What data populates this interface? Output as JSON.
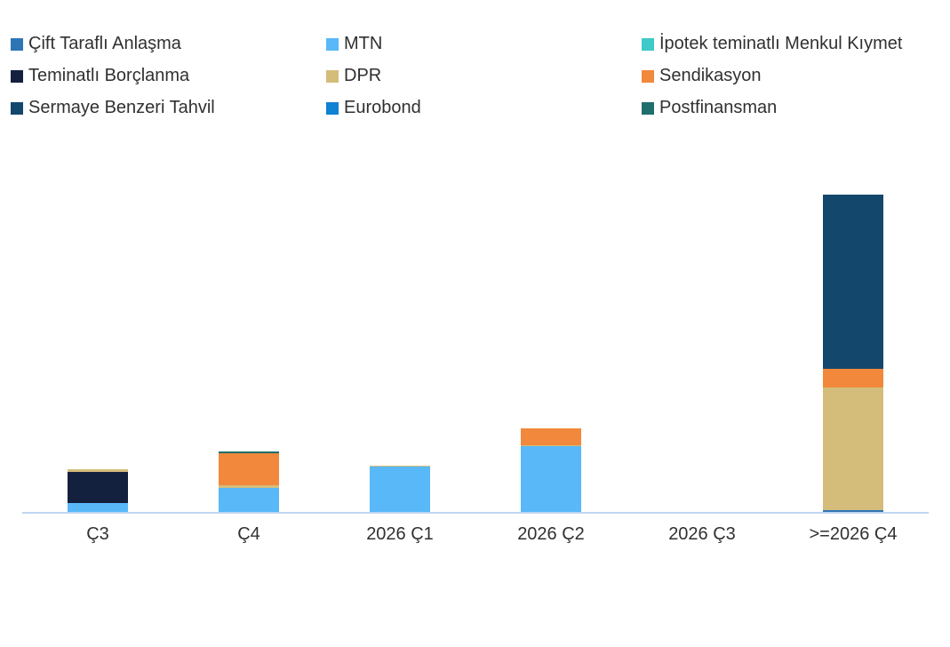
{
  "colors": {
    "axis_line": "#BDD7EE",
    "text": "#303030",
    "background": "#FFFFFF"
  },
  "legend": {
    "position": "top",
    "columns": 3,
    "items": [
      {
        "label": "Çift Taraflı Anlaşma",
        "color": "#2E75B6"
      },
      {
        "label": "MTN",
        "color": "#58B8F8"
      },
      {
        "label": "İpotek teminatlı Menkul Kıymet",
        "color": "#3FC9C9"
      },
      {
        "label": "Teminatlı Borçlanma",
        "color": "#13213F"
      },
      {
        "label": "DPR",
        "color": "#D4BD7B"
      },
      {
        "label": "Sendikasyon",
        "color": "#F1883B"
      },
      {
        "label": "Sermaye Benzeri Tahvil",
        "color": "#14476C"
      },
      {
        "label": "Eurobond",
        "color": "#0E82D3"
      },
      {
        "label": "Postfinansman",
        "color": "#1F6F6D"
      }
    ]
  },
  "chart_data": {
    "type": "bar",
    "stacked": true,
    "title": "",
    "xlabel": "",
    "ylabel": "",
    "yaxis_visible": false,
    "grid": false,
    "value_unit": "relative (no value axis labels shown; values estimated from bar heights)",
    "ylim": [
      0,
      380
    ],
    "categories": [
      "Ç3",
      "Ç4",
      "2026 Ç1",
      "2026 Ç2",
      "2026 Ç3",
      ">=2026 Ç4"
    ],
    "series": [
      {
        "name": "Çift Taraflı Anlaşma",
        "color": "#2E75B6",
        "values": [
          0,
          0,
          0,
          0,
          0,
          3
        ]
      },
      {
        "name": "MTN",
        "color": "#58B8F8",
        "values": [
          11,
          28,
          52,
          75,
          0,
          0
        ]
      },
      {
        "name": "İpotek teminatlı Menkul Kıymet",
        "color": "#3FC9C9",
        "values": [
          0,
          0,
          0,
          0,
          0,
          0
        ]
      },
      {
        "name": "Teminatlı Borçlanma",
        "color": "#13213F",
        "values": [
          35,
          0,
          0,
          0,
          0,
          0
        ]
      },
      {
        "name": "DPR",
        "color": "#D4BD7B",
        "values": [
          3,
          3,
          1,
          1,
          0,
          138
        ]
      },
      {
        "name": "Sendikasyon",
        "color": "#F1883B",
        "values": [
          0,
          36,
          0,
          19,
          0,
          21
        ]
      },
      {
        "name": "Sermaye Benzeri Tahvil",
        "color": "#14476C",
        "values": [
          0,
          0,
          0,
          0,
          0,
          196
        ]
      },
      {
        "name": "Eurobond",
        "color": "#0E82D3",
        "values": [
          0,
          0,
          0,
          0,
          0,
          0
        ]
      },
      {
        "name": "Postfinansman",
        "color": "#1F6F6D",
        "values": [
          0,
          2,
          0,
          0,
          0,
          0
        ]
      }
    ],
    "legend_position": "top"
  }
}
